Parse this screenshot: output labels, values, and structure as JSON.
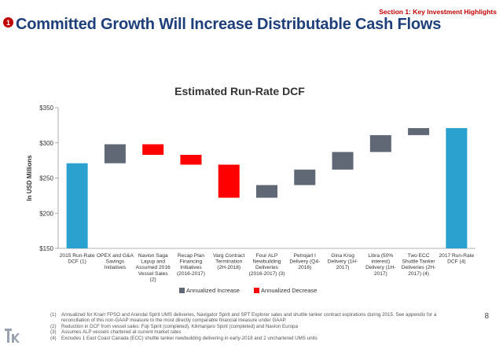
{
  "section_label": "Section 1: Key Investment Highlights",
  "slide_number_badge": "1",
  "slide_title": "Committed Growth Will Increase Distributable Cash Flows",
  "page_number": "8",
  "colors": {
    "total": "#2aa1ce",
    "increase": "#5f6874",
    "decrease": "#ff0000",
    "title": "#1f3f7a",
    "section": "#c00000"
  },
  "chart_data": {
    "type": "waterfall",
    "title": "Estimated Run-Rate DCF",
    "ylabel": "In USD Millions",
    "xlabel": "",
    "ylim": [
      150,
      350
    ],
    "yticks": [
      150,
      200,
      250,
      300,
      350
    ],
    "ytick_labels": [
      "$150",
      "$200",
      "$250",
      "$300",
      "$350"
    ],
    "grid": false,
    "legend_position": "bottom",
    "legend": [
      {
        "kind": "increase",
        "label": "Annualized Increase"
      },
      {
        "kind": "decrease",
        "label": "Annualized Decrease"
      }
    ],
    "categories": [
      [
        "2015 Run-Rate",
        "DCF (1)"
      ],
      [
        "OPEX and G&A",
        "Savings",
        "Initiatives"
      ],
      [
        "Navion Saga",
        "Layup and",
        "Assumed 2016",
        "Vessel Sales",
        "(2)"
      ],
      [
        "Recap Plan",
        "Financing",
        "Initiatives",
        "(2016-2017)"
      ],
      [
        "Varg Contract",
        "Termination",
        "(2H-2018)"
      ],
      [
        "Four ALP",
        "Newbuilding",
        "Deliveries",
        "(2016-2017) (3)"
      ],
      [
        "Petrojarl I",
        "Delivery (Q4-",
        "2016)"
      ],
      [
        "Gina Krog",
        "Delivery (1H-",
        "2017)"
      ],
      [
        "Libra (50%",
        "interest)",
        "Delivery (1H-",
        "2017)"
      ],
      [
        "Two ECC",
        "Shuttle Tanker",
        "Deliveries (2H-",
        "2017) (4)"
      ],
      [
        "2017 Run-Rate",
        "DCF (4)"
      ]
    ],
    "bars": [
      {
        "kind": "total",
        "start": 150,
        "end": 271
      },
      {
        "kind": "increase",
        "start": 271,
        "end": 298
      },
      {
        "kind": "decrease",
        "start": 298,
        "end": 283
      },
      {
        "kind": "decrease",
        "start": 283,
        "end": 269
      },
      {
        "kind": "decrease",
        "start": 269,
        "end": 222
      },
      {
        "kind": "increase",
        "start": 222,
        "end": 240
      },
      {
        "kind": "increase",
        "start": 240,
        "end": 262
      },
      {
        "kind": "increase",
        "start": 262,
        "end": 287
      },
      {
        "kind": "increase",
        "start": 287,
        "end": 311
      },
      {
        "kind": "increase",
        "start": 311,
        "end": 321
      },
      {
        "kind": "total",
        "start": 150,
        "end": 321
      }
    ]
  },
  "footnotes": [
    {
      "num": "(1)",
      "text": "Annualized for Knarr FPSO and Arendal Spirit UMS deliveries, Navigator Spirit and SPT Explorer sales and shuttle tanker contract expirations during 2015. See appendix for a reconciliation of this non-GAAP measure to the most directly comparable financial measure under GAAP."
    },
    {
      "num": "(2)",
      "text": "Reduction in DCF from vessel sales: Fuji Spirit (completed), Kilimanjaro Spirit (completed) and Navion Europa"
    },
    {
      "num": "(3)",
      "text": "Assumes ALP vessels chartered at current market rates"
    },
    {
      "num": "(4)",
      "text": "Excludes 1 East Coast Canada (ECC) shuttle tanker newbuilding delivering in early-2018 and 2 unchartered UMS units"
    }
  ]
}
